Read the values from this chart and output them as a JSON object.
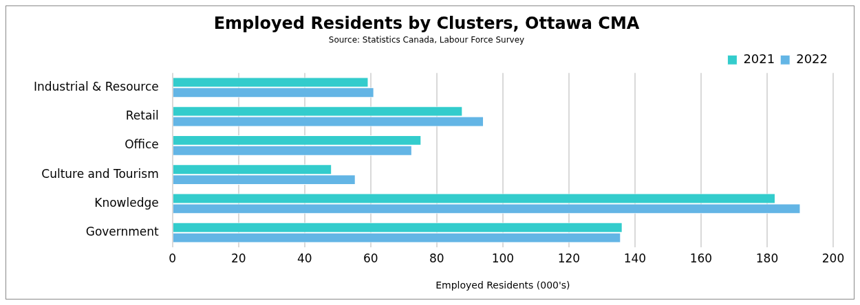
{
  "chart_data": {
    "type": "bar",
    "orientation": "horizontal",
    "title": "Employed Residents by Clusters, Ottawa CMA",
    "subtitle": "Source: Statistics Canada, Labour Force Survey",
    "xlabel": "Employed Residents (000's)",
    "categories": [
      "Industrial & Resource",
      "Retail",
      "Office",
      "Culture and Tourism",
      "Knowledge",
      "Government"
    ],
    "series": [
      {
        "name": "2021",
        "color": "#33cccc",
        "values": [
          59.3,
          87.8,
          75.3,
          48.2,
          182.5,
          136.2
        ]
      },
      {
        "name": "2022",
        "color": "#63b5e5",
        "values": [
          61.0,
          94.2,
          72.5,
          55.4,
          190.1,
          135.7
        ]
      }
    ],
    "xlim": [
      0,
      200
    ],
    "xticks": [
      0,
      20,
      40,
      60,
      80,
      100,
      120,
      140,
      160,
      180,
      200
    ],
    "grid": "x",
    "legend": "top right"
  }
}
